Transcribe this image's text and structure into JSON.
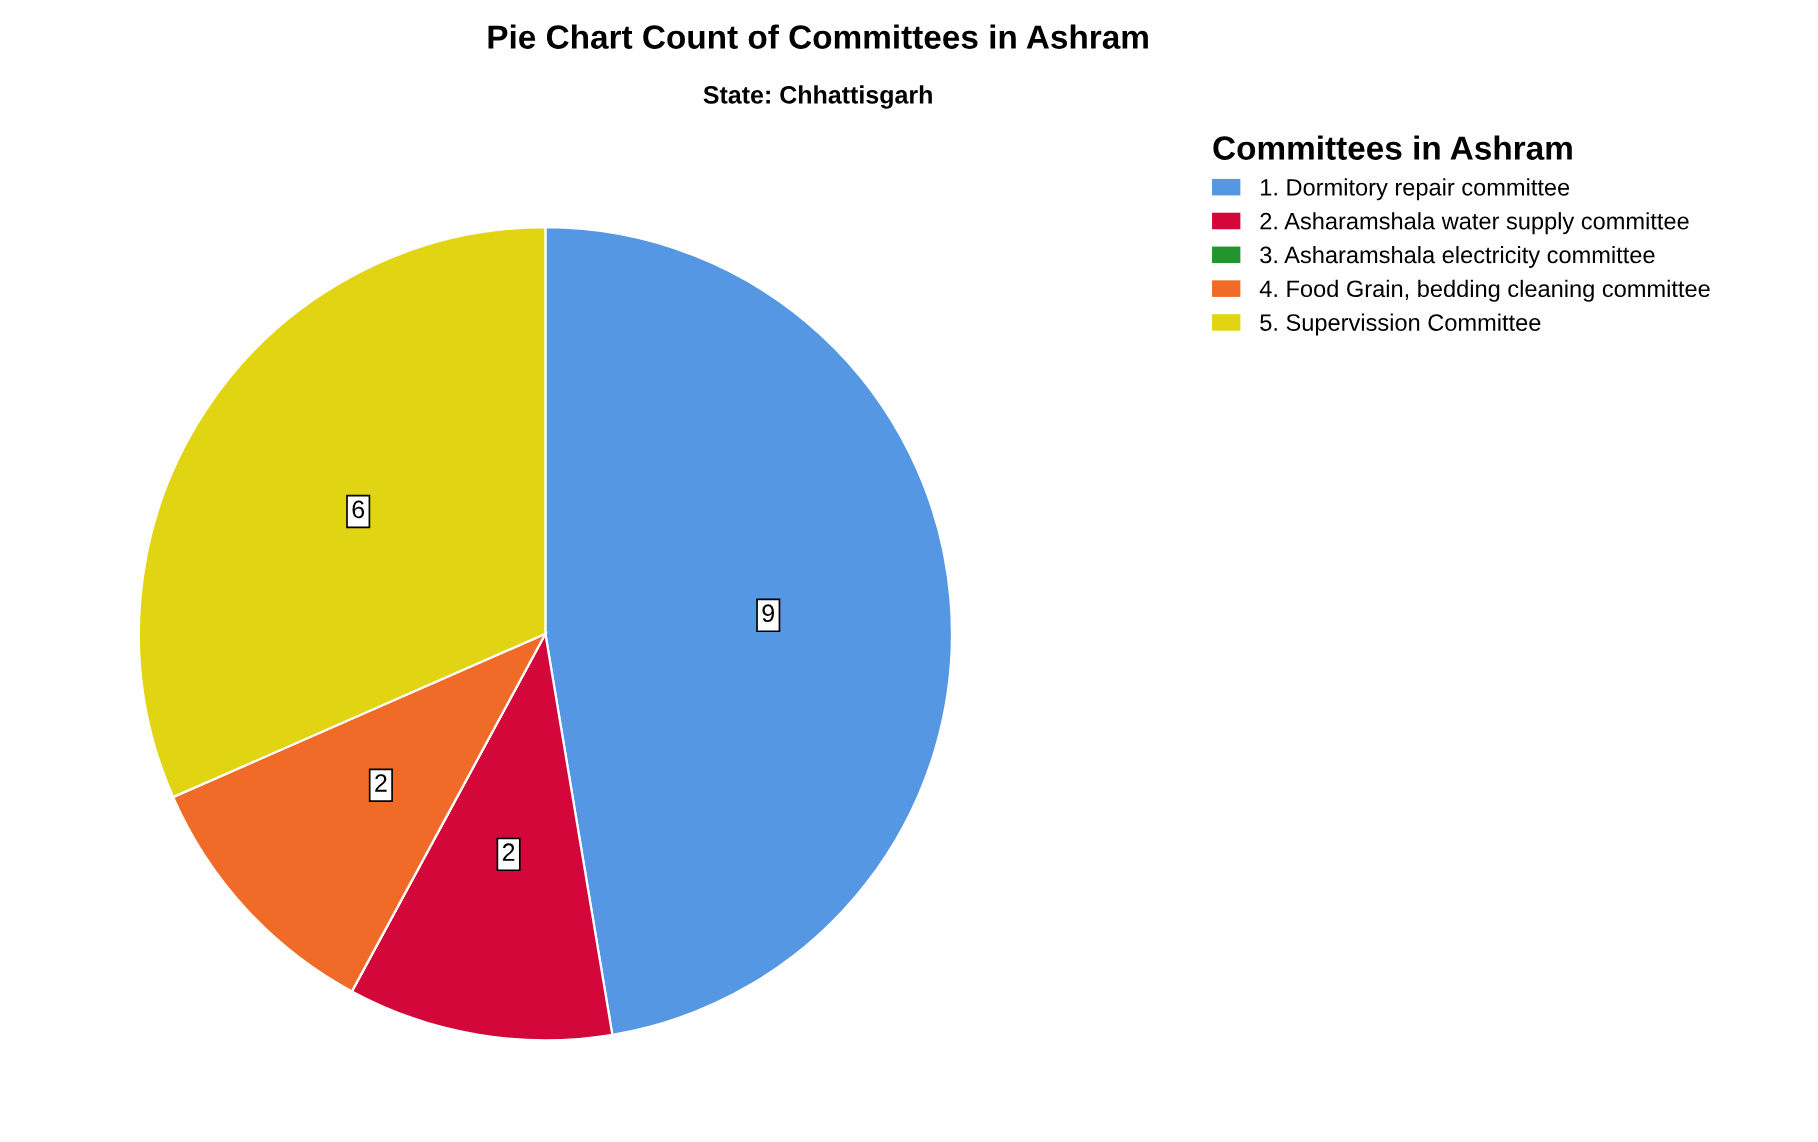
{
  "chart_data": {
    "type": "pie",
    "title": "Pie Chart Count of Committees in Ashram",
    "subtitle": "State: Chhattisgarh",
    "legend_title": "Committees in Ashram",
    "categories": [
      "1. Dormitory repair committee",
      "2. Asharamshala water supply committee",
      "3. Asharamshala electricity committee",
      "4. Food Grain, bedding cleaning committee",
      "5. Supervission Committee"
    ],
    "values": [
      9,
      2,
      0,
      2,
      6
    ],
    "colors": [
      "#5597e3",
      "#d3073a",
      "#21962e",
      "#f06b27",
      "#e1d413"
    ],
    "value_labels": [
      "9",
      "2",
      null,
      "2",
      "6"
    ],
    "legend": "right"
  }
}
